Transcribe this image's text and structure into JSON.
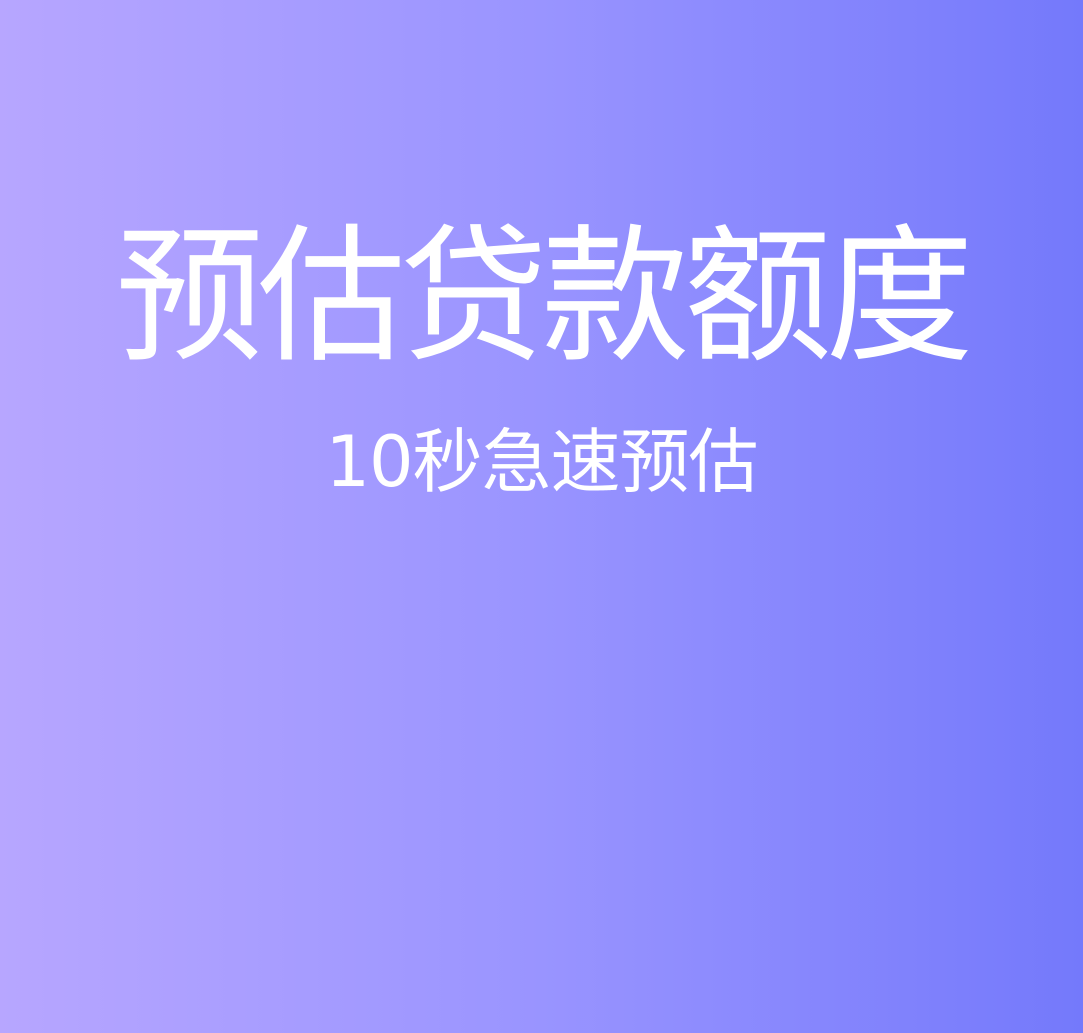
{
  "banner": {
    "headline": "预估贷款额度",
    "subline": "10秒急速预估",
    "gradient_start": "#B7A6FF",
    "gradient_end": "#7479FB",
    "text_color": "#FFFFFF"
  }
}
